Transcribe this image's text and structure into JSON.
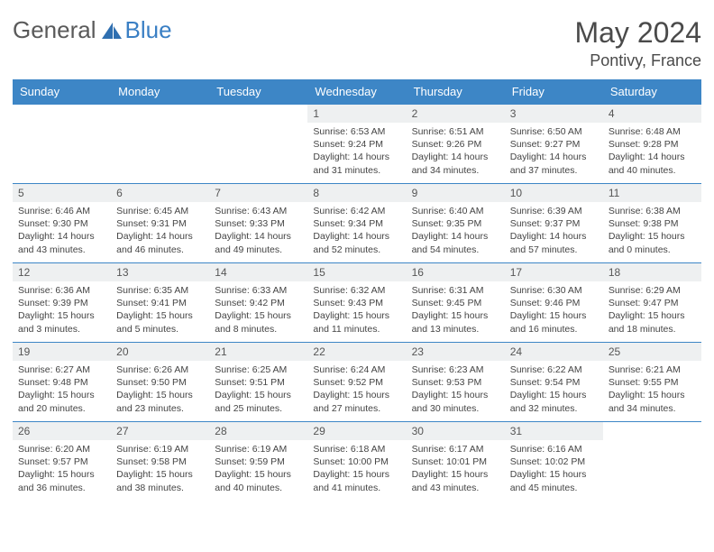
{
  "logo": {
    "word1": "General",
    "word2": "Blue"
  },
  "title": "May 2024",
  "location": "Pontivy, France",
  "colors": {
    "header_bg": "#3d86c6",
    "header_text": "#ffffff",
    "daynum_bg": "#eef0f1",
    "border": "#3d86c6",
    "logo_gray": "#5a5a5a",
    "logo_blue": "#3a7fc4",
    "text": "#444444"
  },
  "weekdays": [
    "Sunday",
    "Monday",
    "Tuesday",
    "Wednesday",
    "Thursday",
    "Friday",
    "Saturday"
  ],
  "grid": [
    [
      null,
      null,
      null,
      {
        "n": "1",
        "sr": "6:53 AM",
        "ss": "9:24 PM",
        "dl": "14 hours and 31 minutes."
      },
      {
        "n": "2",
        "sr": "6:51 AM",
        "ss": "9:26 PM",
        "dl": "14 hours and 34 minutes."
      },
      {
        "n": "3",
        "sr": "6:50 AM",
        "ss": "9:27 PM",
        "dl": "14 hours and 37 minutes."
      },
      {
        "n": "4",
        "sr": "6:48 AM",
        "ss": "9:28 PM",
        "dl": "14 hours and 40 minutes."
      }
    ],
    [
      {
        "n": "5",
        "sr": "6:46 AM",
        "ss": "9:30 PM",
        "dl": "14 hours and 43 minutes."
      },
      {
        "n": "6",
        "sr": "6:45 AM",
        "ss": "9:31 PM",
        "dl": "14 hours and 46 minutes."
      },
      {
        "n": "7",
        "sr": "6:43 AM",
        "ss": "9:33 PM",
        "dl": "14 hours and 49 minutes."
      },
      {
        "n": "8",
        "sr": "6:42 AM",
        "ss": "9:34 PM",
        "dl": "14 hours and 52 minutes."
      },
      {
        "n": "9",
        "sr": "6:40 AM",
        "ss": "9:35 PM",
        "dl": "14 hours and 54 minutes."
      },
      {
        "n": "10",
        "sr": "6:39 AM",
        "ss": "9:37 PM",
        "dl": "14 hours and 57 minutes."
      },
      {
        "n": "11",
        "sr": "6:38 AM",
        "ss": "9:38 PM",
        "dl": "15 hours and 0 minutes."
      }
    ],
    [
      {
        "n": "12",
        "sr": "6:36 AM",
        "ss": "9:39 PM",
        "dl": "15 hours and 3 minutes."
      },
      {
        "n": "13",
        "sr": "6:35 AM",
        "ss": "9:41 PM",
        "dl": "15 hours and 5 minutes."
      },
      {
        "n": "14",
        "sr": "6:33 AM",
        "ss": "9:42 PM",
        "dl": "15 hours and 8 minutes."
      },
      {
        "n": "15",
        "sr": "6:32 AM",
        "ss": "9:43 PM",
        "dl": "15 hours and 11 minutes."
      },
      {
        "n": "16",
        "sr": "6:31 AM",
        "ss": "9:45 PM",
        "dl": "15 hours and 13 minutes."
      },
      {
        "n": "17",
        "sr": "6:30 AM",
        "ss": "9:46 PM",
        "dl": "15 hours and 16 minutes."
      },
      {
        "n": "18",
        "sr": "6:29 AM",
        "ss": "9:47 PM",
        "dl": "15 hours and 18 minutes."
      }
    ],
    [
      {
        "n": "19",
        "sr": "6:27 AM",
        "ss": "9:48 PM",
        "dl": "15 hours and 20 minutes."
      },
      {
        "n": "20",
        "sr": "6:26 AM",
        "ss": "9:50 PM",
        "dl": "15 hours and 23 minutes."
      },
      {
        "n": "21",
        "sr": "6:25 AM",
        "ss": "9:51 PM",
        "dl": "15 hours and 25 minutes."
      },
      {
        "n": "22",
        "sr": "6:24 AM",
        "ss": "9:52 PM",
        "dl": "15 hours and 27 minutes."
      },
      {
        "n": "23",
        "sr": "6:23 AM",
        "ss": "9:53 PM",
        "dl": "15 hours and 30 minutes."
      },
      {
        "n": "24",
        "sr": "6:22 AM",
        "ss": "9:54 PM",
        "dl": "15 hours and 32 minutes."
      },
      {
        "n": "25",
        "sr": "6:21 AM",
        "ss": "9:55 PM",
        "dl": "15 hours and 34 minutes."
      }
    ],
    [
      {
        "n": "26",
        "sr": "6:20 AM",
        "ss": "9:57 PM",
        "dl": "15 hours and 36 minutes."
      },
      {
        "n": "27",
        "sr": "6:19 AM",
        "ss": "9:58 PM",
        "dl": "15 hours and 38 minutes."
      },
      {
        "n": "28",
        "sr": "6:19 AM",
        "ss": "9:59 PM",
        "dl": "15 hours and 40 minutes."
      },
      {
        "n": "29",
        "sr": "6:18 AM",
        "ss": "10:00 PM",
        "dl": "15 hours and 41 minutes."
      },
      {
        "n": "30",
        "sr": "6:17 AM",
        "ss": "10:01 PM",
        "dl": "15 hours and 43 minutes."
      },
      {
        "n": "31",
        "sr": "6:16 AM",
        "ss": "10:02 PM",
        "dl": "15 hours and 45 minutes."
      },
      null
    ]
  ],
  "labels": {
    "sunrise": "Sunrise:",
    "sunset": "Sunset:",
    "daylight": "Daylight:"
  }
}
